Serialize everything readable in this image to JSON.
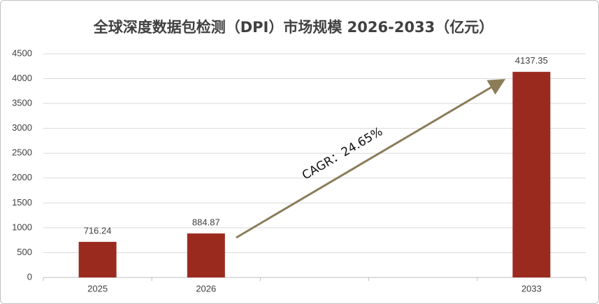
{
  "chart_data": {
    "type": "bar",
    "title": "全球深度数据包检测（DPI）市场规模 2026-2033（亿元）",
    "categories": [
      "2025",
      "2026",
      null,
      null,
      "2033"
    ],
    "values": [
      716.24,
      884.87,
      null,
      null,
      4137.35
    ],
    "color": "#9b2a1e",
    "ylim": [
      0,
      4500
    ],
    "yticks": [
      0,
      500,
      1000,
      1500,
      2000,
      2500,
      3000,
      3500,
      4000,
      4500
    ],
    "grid": true,
    "annotation": "CAGR：24.65%"
  }
}
